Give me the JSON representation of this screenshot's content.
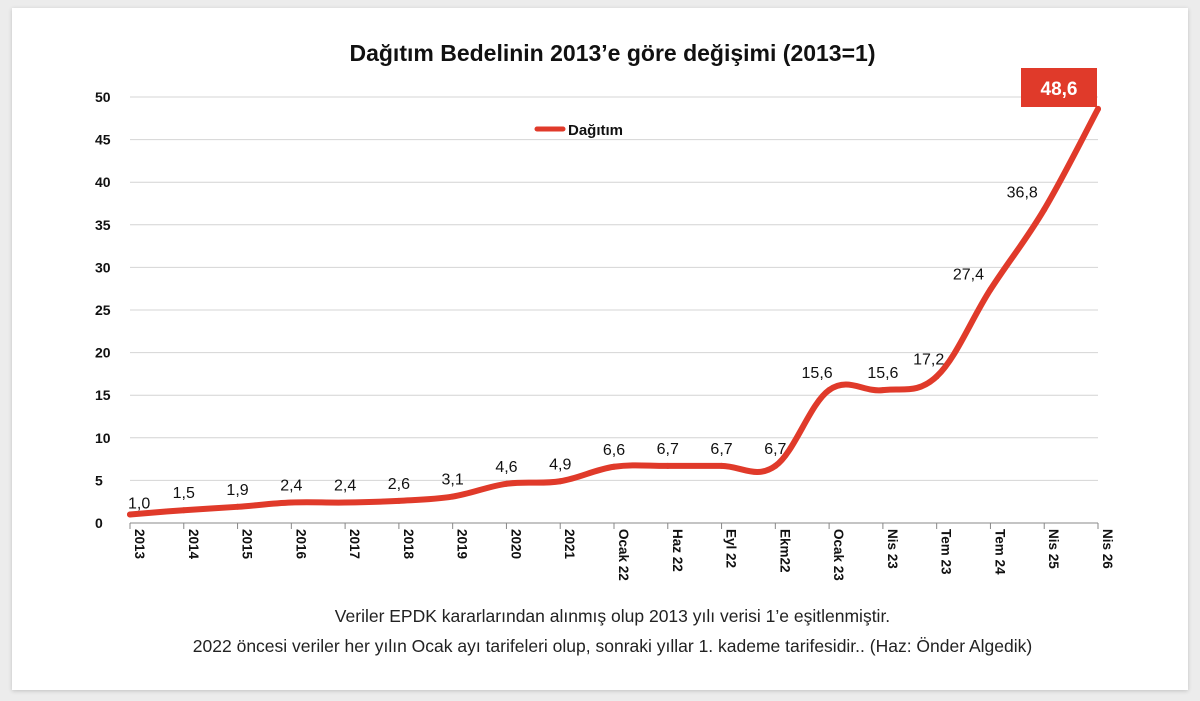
{
  "chart_data": {
    "type": "line",
    "title": "Dağıtım Bedelinin 2013’e göre değişimi (2013=1)",
    "xlabel": "",
    "ylabel": "",
    "ylim": [
      0,
      50
    ],
    "yticks": [
      "0",
      "5",
      "10",
      "15",
      "20",
      "25",
      "30",
      "35",
      "40",
      "45",
      "50"
    ],
    "grid": true,
    "legend_position": "top-center",
    "categories": [
      "2013",
      "2014",
      "2015",
      "2016",
      "2017",
      "2018",
      "2019",
      "2020",
      "2021",
      "Ocak 22",
      "Haz 22",
      "Eyl 22",
      "Ekm22",
      "Ocak 23",
      "Nis 23",
      "Tem 23",
      "Tem 24",
      "Nis 25",
      "Nis 26"
    ],
    "series": [
      {
        "name": "Dağıtım",
        "color": "#e03a2a",
        "values": [
          1.0,
          1.5,
          1.9,
          2.4,
          2.4,
          2.6,
          3.1,
          4.6,
          4.9,
          6.6,
          6.7,
          6.7,
          6.7,
          15.6,
          15.6,
          17.2,
          27.4,
          36.8,
          48.6
        ],
        "labels": [
          "1,0",
          "1,5",
          "1,9",
          "2,4",
          "2,4",
          "2,6",
          "3,1",
          "4,6",
          "4,9",
          "6,6",
          "6,7",
          "6,7",
          "6,7",
          "15,6",
          "15,6",
          "17,2",
          "27,4",
          "36,8",
          "48,6"
        ]
      }
    ],
    "highlight": {
      "label": "48,6",
      "color": "#e03a2a"
    }
  },
  "footnote": {
    "line1": "Veriler EPDK kararlarından alınmış olup  2013 yılı verisi 1’e eşitlenmiştir.",
    "line2": "2022 öncesi veriler her yılın Ocak ayı tarifeleri olup, sonraki yıllar 1. kademe tarifesidir.. (Haz: Önder Algedik)"
  }
}
